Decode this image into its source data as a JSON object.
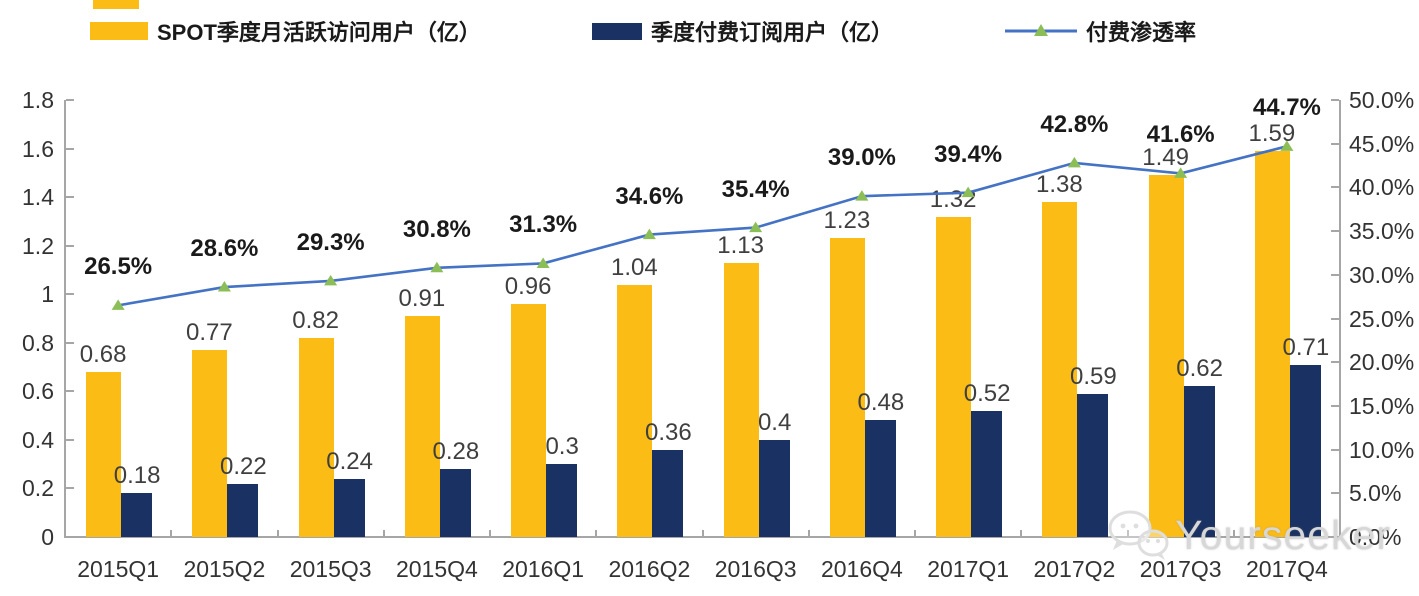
{
  "chart_data": {
    "type": "bar",
    "categories": [
      "2015Q1",
      "2015Q2",
      "2015Q3",
      "2015Q4",
      "2016Q1",
      "2016Q2",
      "2016Q3",
      "2016Q4",
      "2017Q1",
      "2017Q2",
      "2017Q3",
      "2017Q4"
    ],
    "series": [
      {
        "name": "SPOT季度月活跃访问用户（亿）",
        "type": "bar",
        "axis": "left",
        "color": "#FBBC16",
        "values": [
          0.68,
          0.77,
          0.82,
          0.91,
          0.96,
          1.04,
          1.13,
          1.23,
          1.32,
          1.38,
          1.49,
          1.59
        ],
        "labels": [
          "0.68",
          "0.77",
          "0.82",
          "0.91",
          "0.96",
          "1.04",
          "1.13",
          "1.23",
          "1.32",
          "1.38",
          "1.49",
          "1.59"
        ]
      },
      {
        "name": "季度付费订阅用户（亿）",
        "type": "bar",
        "axis": "left",
        "color": "#1A3263",
        "values": [
          0.18,
          0.22,
          0.24,
          0.28,
          0.3,
          0.36,
          0.4,
          0.48,
          0.52,
          0.59,
          0.62,
          0.71
        ],
        "labels": [
          "0.18",
          "0.22",
          "0.24",
          "0.28",
          "0.3",
          "0.36",
          "0.4",
          "0.48",
          "0.52",
          "0.59",
          "0.62",
          "0.71"
        ]
      },
      {
        "name": "付费渗透率",
        "type": "line",
        "axis": "right",
        "color": "#4472C4",
        "marker": "triangle",
        "marker_color": "#8CBE57",
        "values": [
          26.5,
          28.6,
          29.3,
          30.8,
          31.3,
          34.6,
          35.4,
          39.0,
          39.4,
          42.8,
          41.6,
          44.7
        ],
        "labels": [
          "26.5%",
          "28.6%",
          "29.3%",
          "30.8%",
          "31.3%",
          "34.6%",
          "35.4%",
          "39.0%",
          "39.4%",
          "42.8%",
          "41.6%",
          "44.7%"
        ]
      }
    ],
    "left_axis": {
      "min": 0,
      "max": 1.8,
      "tick_labels": [
        "1.8",
        "1.6",
        "1.4",
        "1.2",
        "1",
        "0.8",
        "0.6",
        "0.4",
        "0.2",
        "0"
      ]
    },
    "right_axis": {
      "min": 0,
      "max": 50,
      "tick_labels": [
        "50.0%",
        "45.0%",
        "40.0%",
        "35.0%",
        "30.0%",
        "25.0%",
        "20.0%",
        "15.0%",
        "10.0%",
        "5.0%",
        "0.0%"
      ]
    },
    "grid": false,
    "legend_position": "top",
    "title": ""
  },
  "watermark": {
    "text": "Yourseeker"
  }
}
